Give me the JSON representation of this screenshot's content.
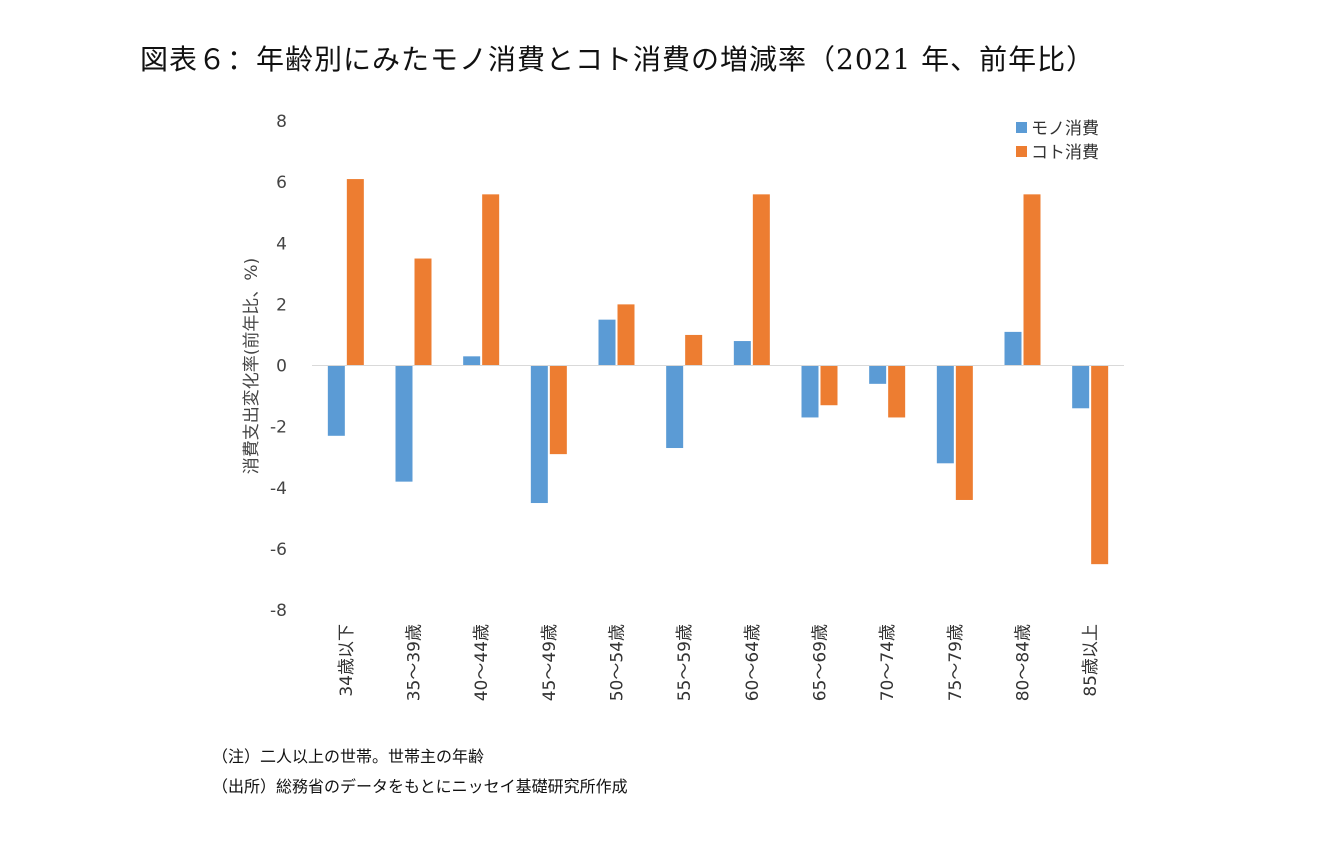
{
  "title": "図表６：年齢別にみたモノ消費とコト消費の増減率（2021 年、前年比）",
  "notes": [
    "（注）二人以上の世帯。世帯主の年齢",
    "（出所）総務省のデータをもとにニッセイ基礎研究所作成"
  ],
  "colors": {
    "mono": "#5B9BD5",
    "koto": "#ED7D31",
    "axis": "#d9d9d9"
  },
  "chart_data": {
    "type": "bar",
    "title": "",
    "xlabel": "",
    "ylabel": "消費支出変化率(前年比、%)",
    "ylim": [
      -8,
      8
    ],
    "yticks": [
      "8",
      "6",
      "4",
      "2",
      "0",
      "-2",
      "-4",
      "-6",
      "-8"
    ],
    "grid": false,
    "legend": "top-right",
    "categories": [
      "34歳以下",
      "35～39歳",
      "40～44歳",
      "45～49歳",
      "50～54歳",
      "55～59歳",
      "60～64歳",
      "65～69歳",
      "70～74歳",
      "75～79歳",
      "80～84歳",
      "85歳以上"
    ],
    "series": [
      {
        "name": "モノ消費",
        "values": [
          -2.3,
          -3.8,
          0.3,
          -4.5,
          1.5,
          -2.7,
          0.8,
          -1.7,
          -0.6,
          -3.2,
          1.1,
          -1.4
        ]
      },
      {
        "name": "コト消費",
        "values": [
          6.1,
          3.5,
          5.6,
          -2.9,
          2.0,
          1.0,
          5.6,
          -1.3,
          -1.7,
          -4.4,
          5.6,
          -6.5
        ]
      }
    ]
  }
}
